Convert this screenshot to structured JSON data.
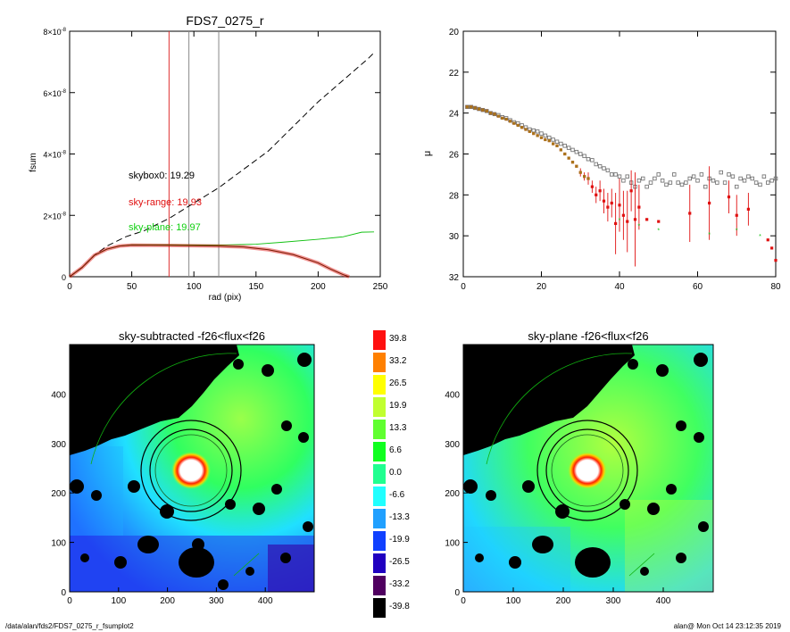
{
  "footer": {
    "path": "/data/alan/fds2/FDS7_0275_r_fsumplot2",
    "stamp": "alan@  Mon Oct 14 23:12:35 2019"
  },
  "chart_data": [
    {
      "type": "line",
      "title": "FDS7_0275_r",
      "xlabel": "rad (pix)",
      "ylabel": "fsum",
      "xlim": [
        0,
        250
      ],
      "ylim": [
        0,
        8e-08
      ],
      "xticks": [
        0,
        50,
        100,
        150,
        200,
        250
      ],
      "ytick_labels": [
        {
          "mant": "0",
          "exp": ""
        },
        {
          "mant": "2×10",
          "exp": "-8"
        },
        {
          "mant": "4×10",
          "exp": "-8"
        },
        {
          "mant": "6×10",
          "exp": "-8"
        },
        {
          "mant": "8×10",
          "exp": "-8"
        }
      ],
      "ytick_values": [
        0,
        2e-08,
        4e-08,
        6e-08,
        8e-08
      ],
      "vlines": [
        {
          "x": 80,
          "color": "#e03030"
        },
        {
          "x": 96,
          "color": "#888888"
        },
        {
          "x": 120,
          "color": "#888888"
        }
      ],
      "annotations": [
        {
          "text": "skybox0: 19.29",
          "color": "#000000"
        },
        {
          "text": "sky-range: 19.93",
          "color": "#e01010"
        },
        {
          "text": "sky-plane: 19.97",
          "color": "#10d010"
        }
      ],
      "series": [
        {
          "style": "dashed",
          "color": "#000000",
          "x": [
            0,
            10,
            20,
            30,
            45,
            60,
            80,
            100,
            120,
            140,
            160,
            180,
            200,
            220,
            240,
            245
          ],
          "y": [
            0,
            3e-09,
            7e-09,
            1e-08,
            1.3e-08,
            1.5e-08,
            1.9e-08,
            2.4e-08,
            2.9e-08,
            3.5e-08,
            4.1e-08,
            4.9e-08,
            5.7e-08,
            6.4e-08,
            7.1e-08,
            7.3e-08
          ]
        },
        {
          "style": "solid",
          "color": "#10c010",
          "x": [
            0,
            10,
            20,
            30,
            40,
            50,
            80,
            120,
            150,
            170,
            200,
            220,
            235,
            245
          ],
          "y": [
            0,
            3e-09,
            7e-09,
            9e-09,
            1e-08,
            1.04e-08,
            1.04e-08,
            1.03e-08,
            1.06e-08,
            1.12e-08,
            1.22e-08,
            1.3e-08,
            1.45e-08,
            1.46e-08
          ]
        },
        {
          "style": "band",
          "color": "#e01010",
          "x": [
            0,
            10,
            20,
            30,
            40,
            50,
            80,
            120,
            140,
            160,
            180,
            200,
            210,
            220,
            225
          ],
          "y": [
            0,
            3e-09,
            7e-09,
            9e-09,
            1e-08,
            1.03e-08,
            1.02e-08,
            1e-08,
            9.7e-09,
            8.8e-09,
            7.2e-09,
            4.5e-09,
            2.5e-09,
            7e-10,
            0
          ]
        }
      ]
    },
    {
      "type": "scatter",
      "title": "",
      "xlabel": "",
      "ylabel": "μ",
      "xlim": [
        0,
        80
      ],
      "ylim": [
        32,
        20
      ],
      "xticks": [
        0,
        20,
        40,
        60,
        80
      ],
      "yticks": [
        20,
        22,
        24,
        26,
        28,
        30,
        32
      ],
      "series": [
        {
          "marker": "open-square",
          "color": "#777777",
          "x": [
            1,
            2,
            3,
            4,
            5,
            6,
            7,
            8,
            9,
            10,
            11,
            12,
            13,
            14,
            15,
            16,
            17,
            18,
            19,
            20,
            21,
            22,
            23,
            24,
            25,
            26,
            27,
            28,
            29,
            30,
            31,
            32,
            33,
            34,
            35,
            36,
            37,
            38,
            39,
            40,
            41,
            42,
            43,
            44,
            45,
            46,
            47,
            48,
            49,
            50,
            51,
            52,
            53,
            54,
            55,
            56,
            57,
            58,
            59,
            60,
            61,
            62,
            63,
            64,
            65,
            66,
            67,
            68,
            69,
            70,
            71,
            72,
            73,
            74,
            75,
            76,
            77,
            78,
            79,
            80
          ],
          "y": [
            23.7,
            23.7,
            23.75,
            23.8,
            23.85,
            23.9,
            24.0,
            24.05,
            24.1,
            24.2,
            24.25,
            24.35,
            24.45,
            24.5,
            24.6,
            24.7,
            24.8,
            24.85,
            24.9,
            25.0,
            25.1,
            25.2,
            25.3,
            25.4,
            25.5,
            25.6,
            25.7,
            25.8,
            25.9,
            26.0,
            26.1,
            26.25,
            26.3,
            26.5,
            26.6,
            26.7,
            26.8,
            27.0,
            27.0,
            27.1,
            27.3,
            27.1,
            27.4,
            27.6,
            27.3,
            27.2,
            27.6,
            27.4,
            27.2,
            27.0,
            27.3,
            27.5,
            27.4,
            27.0,
            27.4,
            27.5,
            27.4,
            27.2,
            27.1,
            27.3,
            27.0,
            27.6,
            27.2,
            27.3,
            27.4,
            26.9,
            27.4,
            27.0,
            27.1,
            27.6,
            27.2,
            27.3,
            27.1,
            27.2,
            27.4,
            27.5,
            27.1,
            27.4,
            27.3,
            27.2
          ]
        },
        {
          "marker": "filled-square",
          "color": "#e01010",
          "x": [
            1,
            2,
            3,
            4,
            5,
            6,
            7,
            8,
            9,
            10,
            11,
            12,
            13,
            14,
            15,
            16,
            17,
            18,
            19,
            20,
            21,
            22,
            23,
            24,
            25,
            26,
            27,
            28,
            29,
            30,
            31,
            32,
            33,
            34,
            35,
            36,
            37,
            38,
            39,
            40,
            41,
            42,
            43,
            44,
            45,
            47,
            50,
            58,
            63,
            68,
            70,
            73,
            78,
            79,
            80
          ],
          "y": [
            23.7,
            23.7,
            23.75,
            23.8,
            23.85,
            23.9,
            24.0,
            24.05,
            24.15,
            24.25,
            24.3,
            24.4,
            24.5,
            24.6,
            24.7,
            24.8,
            24.9,
            25.0,
            25.1,
            25.2,
            25.3,
            25.35,
            25.5,
            25.6,
            25.8,
            26.0,
            26.2,
            26.4,
            26.6,
            26.9,
            27.1,
            27.2,
            27.6,
            28.0,
            27.8,
            28.3,
            28.6,
            28.4,
            29.4,
            28.5,
            29.0,
            29.3,
            27.8,
            29.2,
            28.6,
            29.2,
            29.3,
            28.9,
            28.4,
            28.1,
            29.0,
            28.7,
            30.2,
            30.6,
            31.2
          ],
          "err": [
            0,
            0,
            0,
            0,
            0,
            0,
            0,
            0,
            0,
            0,
            0,
            0,
            0,
            0,
            0,
            0,
            0,
            0,
            0,
            0,
            0,
            0,
            0,
            0,
            0,
            0,
            0,
            0,
            0,
            0.2,
            0.2,
            0.3,
            0.3,
            0.4,
            0.5,
            0.6,
            0.7,
            0.7,
            1.5,
            1.3,
            1.2,
            1.5,
            1.0,
            2.3,
            1.1,
            0,
            0,
            1.4,
            1.8,
            0.8,
            1.0,
            0.8,
            0,
            0,
            0
          ]
        },
        {
          "marker": "star",
          "color": "#10c010",
          "x": [
            40,
            45,
            50,
            63,
            70,
            76
          ],
          "y": [
            29.2,
            29.5,
            29.7,
            29.9,
            29.7,
            30.0
          ]
        }
      ]
    },
    {
      "type": "heatmap",
      "title": "sky-subtracted -f26<flux<f26",
      "xticks": [
        0,
        100,
        200,
        300,
        400
      ],
      "yticks": [
        0,
        100,
        200,
        300,
        400
      ],
      "xlim": [
        0,
        500
      ],
      "ylim": [
        0,
        500
      ]
    },
    {
      "type": "heatmap",
      "title": "sky-plane -f26<flux<f26",
      "xticks": [
        0,
        100,
        200,
        300,
        400
      ],
      "yticks": [
        0,
        100,
        200,
        300,
        400
      ],
      "xlim": [
        0,
        500
      ],
      "ylim": [
        0,
        500
      ]
    }
  ],
  "colorbar": {
    "labels": [
      "39.8",
      "33.2",
      "26.5",
      "19.9",
      "13.3",
      "6.6",
      "0.0",
      "-6.6",
      "-13.3",
      "-19.9",
      "-26.5",
      "-33.2",
      "-39.8"
    ],
    "colors": [
      "#ff1010",
      "#ff8000",
      "#ffff00",
      "#c0ff30",
      "#60ff30",
      "#10ff20",
      "#20ff90",
      "#20ffff",
      "#20a0ff",
      "#1040ff",
      "#2000c0",
      "#500060",
      "#000000"
    ]
  }
}
